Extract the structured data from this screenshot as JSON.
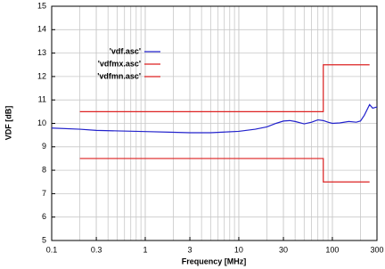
{
  "chart_data": {
    "type": "line",
    "xlabel": "Frequency [MHz]",
    "ylabel": "VDF [dB]",
    "xscale": "log",
    "xlim": [
      0.1,
      300
    ],
    "ylim": [
      5,
      15
    ],
    "xticks": [
      0.1,
      0.3,
      1,
      3,
      10,
      30,
      100,
      300
    ],
    "yticks": [
      5,
      6,
      7,
      8,
      9,
      10,
      11,
      12,
      13,
      14,
      15
    ],
    "grid": true,
    "legend": "upper left",
    "series": [
      {
        "name": "'vdf.asc'",
        "color": "#2222cc",
        "x": [
          0.1,
          0.2,
          0.3,
          0.5,
          1,
          2,
          3,
          5,
          7,
          10,
          15,
          20,
          25,
          30,
          35,
          40,
          50,
          60,
          70,
          80,
          90,
          100,
          120,
          150,
          180,
          200,
          220,
          250,
          270,
          300
        ],
        "values": [
          9.8,
          9.75,
          9.7,
          9.68,
          9.65,
          9.62,
          9.6,
          9.6,
          9.63,
          9.66,
          9.75,
          9.85,
          10.0,
          10.1,
          10.12,
          10.08,
          9.98,
          10.05,
          10.15,
          10.12,
          10.05,
          10.0,
          10.02,
          10.08,
          10.05,
          10.1,
          10.35,
          10.8,
          10.65,
          10.7
        ]
      },
      {
        "name": "'vdfmx.asc'",
        "color": "#dd2222",
        "x": [
          0.2,
          80,
          80,
          250
        ],
        "values": [
          10.5,
          10.5,
          12.5,
          12.5
        ]
      },
      {
        "name": "'vdfmn.asc'",
        "color": "#dd2222",
        "x": [
          0.2,
          80,
          80,
          250
        ],
        "values": [
          8.5,
          8.5,
          7.5,
          7.5
        ]
      }
    ]
  }
}
